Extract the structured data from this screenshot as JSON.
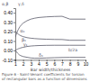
{
  "chart_data": {
    "type": "line",
    "color": "#5a5a6a",
    "grid": false,
    "xlabel": "Bar width/thickness",
    "annotations": [
      "α,β",
      "γ,δ",
      "b/2a",
      "Figure 6 - Saint-Venant coefficients for torsion of rectangular bars as a function of dimensions"
    ],
    "x": [
      1.0,
      1.1,
      1.2,
      1.3,
      1.4,
      1.5,
      1.6,
      1.8,
      2.0,
      2.5,
      3.0,
      3.5,
      4.0,
      5.0,
      6.0,
      7.0,
      8.0,
      10.0
    ],
    "series": [
      {
        "name": "α₁",
        "values": [
          0.141,
          0.166,
          0.188,
          0.208,
          0.225,
          0.24,
          0.253,
          0.274,
          0.29,
          0.316,
          0.333,
          0.343,
          0.35,
          0.357,
          0.361,
          0.363,
          0.333,
          0.333
        ]
      },
      {
        "name": "β₁",
        "values": [
          0.208,
          0.196,
          0.187,
          0.179,
          0.172,
          0.166,
          0.161,
          0.153,
          0.147,
          0.136,
          0.13,
          0.126,
          0.123,
          0.119,
          0.117,
          0.116,
          0.108,
          0.108
        ]
      },
      {
        "name": "γ₁",
        "values": [
          0.0,
          0.005,
          0.01,
          0.014,
          0.018,
          0.021,
          0.024,
          0.029,
          0.033,
          0.042,
          0.047,
          0.05,
          0.052,
          0.054,
          0.055,
          0.055,
          0.055,
          0.055
        ]
      },
      {
        "name": "δ₁",
        "values": [
          0.0,
          -0.01,
          -0.02,
          -0.03,
          -0.038,
          -0.046,
          -0.051,
          -0.059,
          -0.065,
          -0.073,
          -0.08,
          -0.083,
          -0.083,
          -0.08,
          -0.077,
          -0.075,
          -0.074,
          -0.074
        ]
      }
    ],
    "xlim": [
      1,
      10
    ],
    "xticks": [
      1,
      2,
      3,
      4,
      5,
      6,
      7,
      8,
      9,
      10
    ],
    "ylim": [
      -0.1,
      0.45
    ],
    "yticks": [
      {
        "value": 0.4,
        "label": "0.40"
      },
      {
        "value": 0.3,
        "label": "0.30"
      },
      {
        "value": 0.2,
        "label": "0.20"
      },
      {
        "value": 0.1,
        "label": "0.10"
      },
      {
        "value": 0.0,
        "label": "0.00"
      },
      {
        "value": -0.1,
        "label": "-0.10"
      }
    ]
  }
}
